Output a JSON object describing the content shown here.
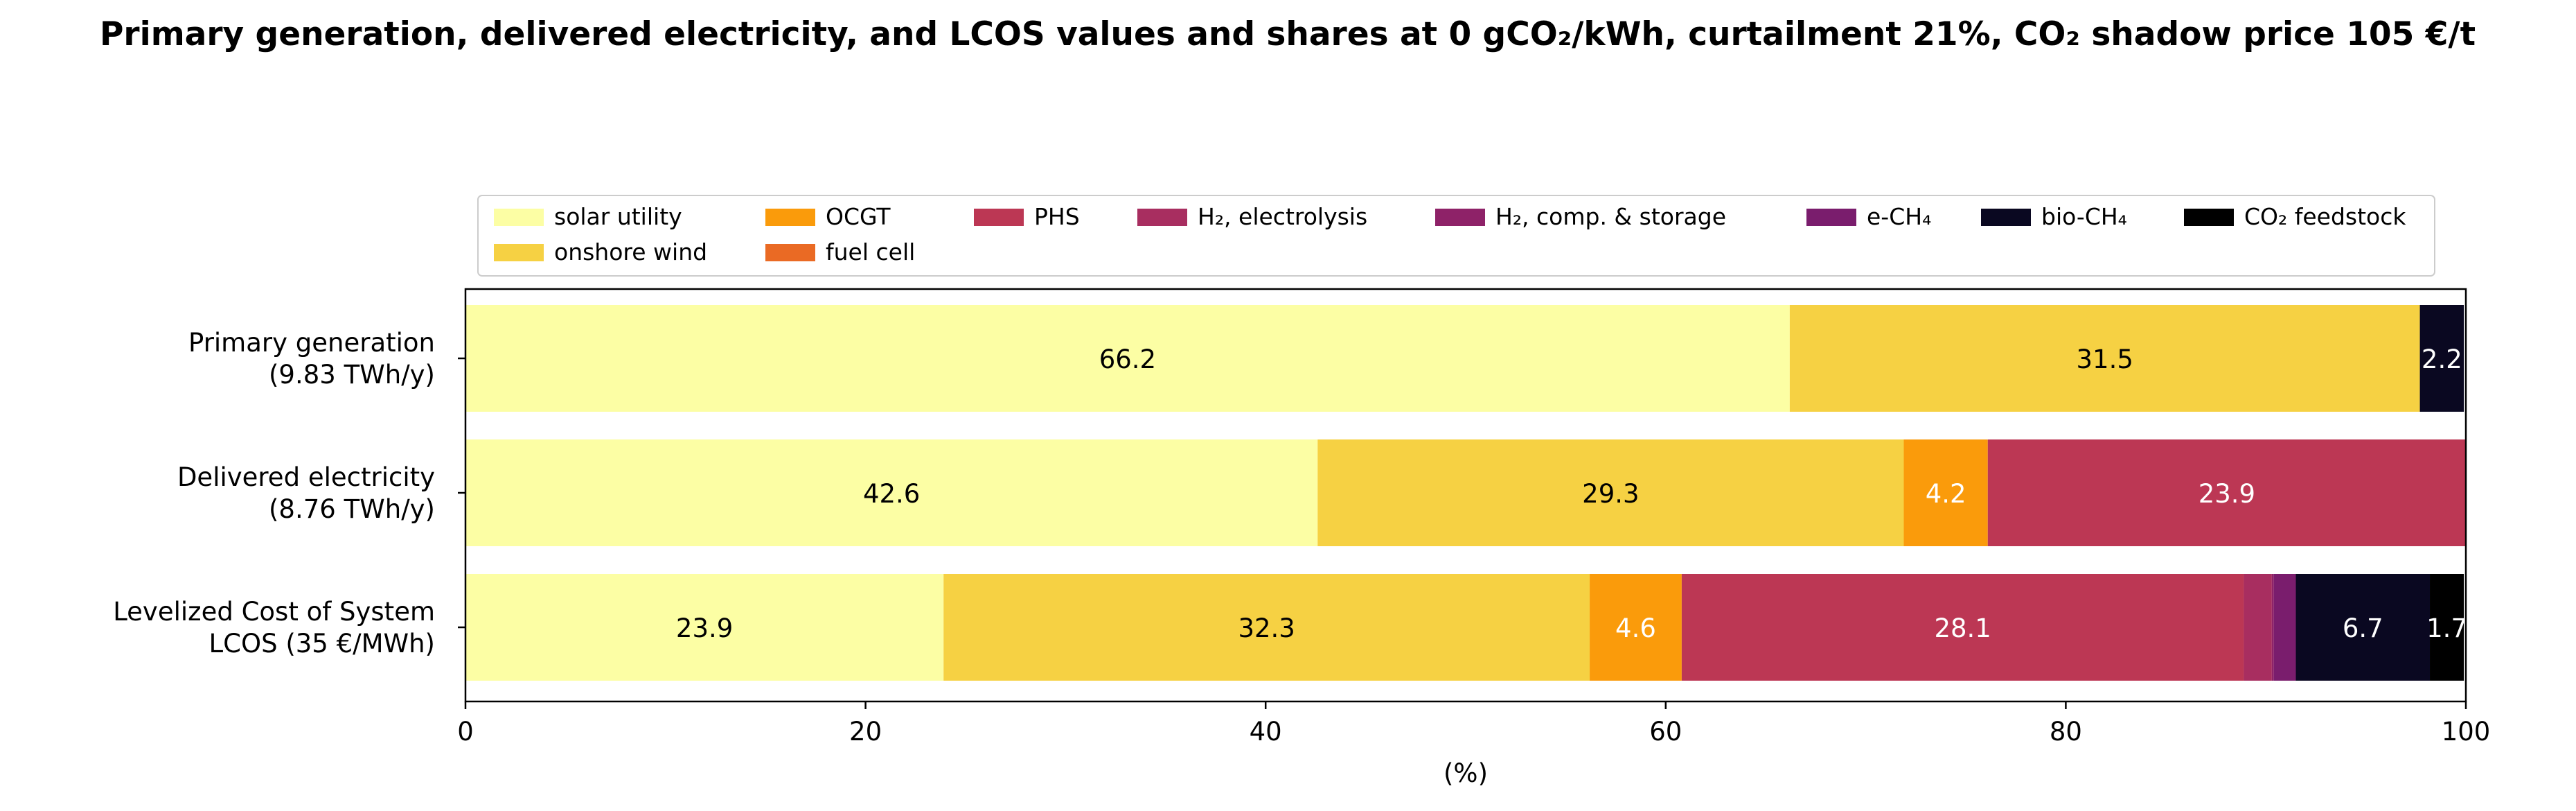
{
  "chart_data": {
    "type": "bar",
    "orientation": "horizontal",
    "stacked": true,
    "title": "Primary generation, delivered electricity, and LCOS values and shares at 0 gCO₂/kWh, curtailment 21%, CO₂ shadow price 105 €/t",
    "xlabel": "(%)",
    "ylabel": "",
    "xlim": [
      0,
      100
    ],
    "xticks": [
      0,
      20,
      40,
      60,
      80,
      100
    ],
    "grid": false,
    "legend_position": "top",
    "categories": [
      "Primary generation\n(9.83 TWh/y)",
      "Delivered electricity\n(8.76 TWh/y)",
      "Levelized Cost of System\nLCOS  (35 €/MWh)"
    ],
    "series": [
      {
        "name": "solar utility",
        "color": "#fcfea4",
        "values": [
          66.2,
          42.6,
          23.9
        ],
        "label_color": "#000000"
      },
      {
        "name": "onshore wind",
        "color": "#f6d143",
        "values": [
          31.5,
          29.3,
          32.3
        ],
        "label_color": "#000000"
      },
      {
        "name": "OCGT",
        "color": "#fa9b0b",
        "values": [
          0,
          4.2,
          4.6
        ],
        "label_color": "#ffffff"
      },
      {
        "name": "fuel cell",
        "color": "#ea6a24",
        "values": [
          0,
          0,
          0
        ],
        "label_color": "#ffffff"
      },
      {
        "name": "PHS",
        "color": "#bc3754",
        "values": [
          0,
          23.9,
          28.1
        ],
        "label_color": "#ffffff"
      },
      {
        "name": "H₂, electrolysis",
        "color": "#a82e60",
        "values": [
          0,
          0,
          1.4
        ],
        "label_color": "#ffffff"
      },
      {
        "name": "H₂, comp. & storage",
        "color": "#8e2268",
        "values": [
          0,
          0,
          0.1
        ],
        "label_color": "#ffffff"
      },
      {
        "name": "e-CH₄",
        "color": "#7a1d6d",
        "values": [
          0,
          0,
          1.1
        ],
        "label_color": "#ffffff"
      },
      {
        "name": "bio-CH₄",
        "color": "#0a0821",
        "values": [
          2.2,
          0,
          6.7
        ],
        "label_color": "#ffffff"
      },
      {
        "name": "CO₂ feedstock",
        "color": "#000000",
        "values": [
          0,
          0,
          1.7
        ],
        "label_color": "#ffffff"
      }
    ],
    "label_threshold": 1.5
  }
}
